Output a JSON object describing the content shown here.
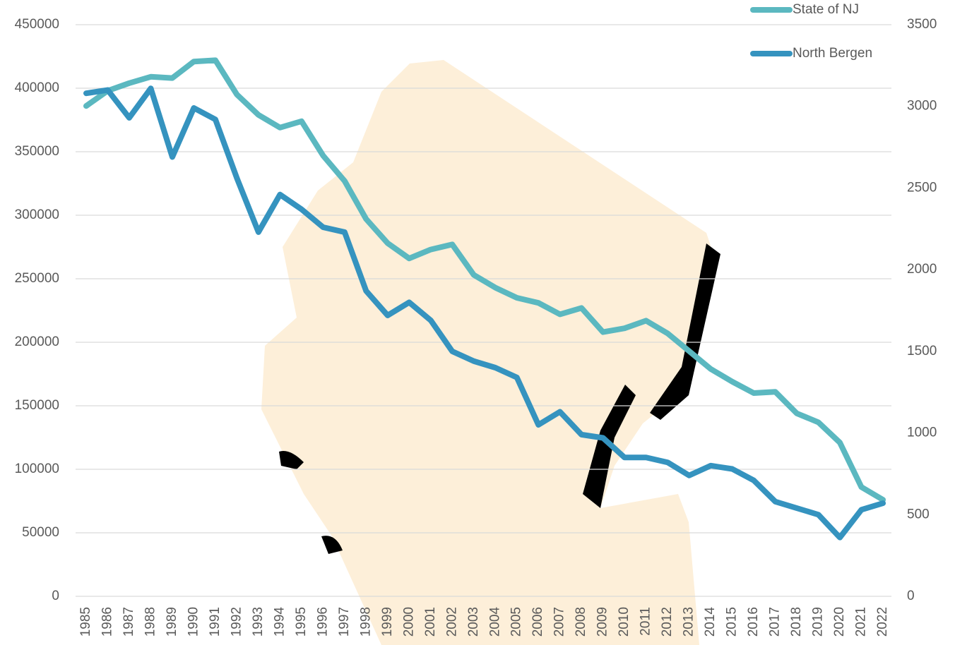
{
  "chart_data": {
    "type": "line",
    "categories": [
      "1985",
      "1986",
      "1987",
      "1988",
      "1989",
      "1990",
      "1991",
      "1992",
      "1993",
      "1994",
      "1995",
      "1996",
      "1997",
      "1998",
      "1999",
      "2000",
      "2001",
      "2002",
      "2003",
      "2004",
      "2005",
      "2006",
      "2007",
      "2008",
      "2009",
      "2010",
      "2011",
      "2012",
      "2013",
      "2014",
      "2015",
      "2016",
      "2017",
      "2018",
      "2019",
      "2020",
      "2021",
      "2022"
    ],
    "series": [
      {
        "name": "State of NJ",
        "color": "#5bb8c0",
        "values": [
          386000,
          398000,
          404000,
          409000,
          408000,
          421000,
          422000,
          395000,
          379000,
          369000,
          374000,
          347000,
          327000,
          297000,
          278000,
          266000,
          273000,
          277000,
          253000,
          243000,
          235000,
          231000,
          222000,
          227000,
          208000,
          211000,
          217000,
          207000,
          193000,
          179000,
          169000,
          160000,
          161000,
          144000,
          137000,
          121000,
          86000,
          76000
        ]
      },
      {
        "name": "North Bergen",
        "color": "#3593bf",
        "axis": "y2",
        "values": [
          3080,
          3100,
          2930,
          3110,
          2690,
          2990,
          2920,
          2560,
          2230,
          2460,
          2370,
          2260,
          2230,
          1870,
          1720,
          1800,
          1690,
          1500,
          1440,
          1400,
          1340,
          1050,
          1130,
          990,
          970,
          850,
          850,
          820,
          740,
          800,
          780,
          710,
          580,
          540,
          500,
          360,
          530,
          570
        ]
      }
    ],
    "ylim": [
      0,
      450000
    ],
    "yticks": [
      0,
      50000,
      100000,
      150000,
      200000,
      250000,
      300000,
      350000,
      400000,
      450000
    ],
    "y2lim": [
      0,
      3500
    ],
    "y2ticks": [
      0,
      500,
      1000,
      1500,
      2000,
      2500,
      3000,
      3500
    ],
    "grid": true,
    "legend": "top-right"
  }
}
